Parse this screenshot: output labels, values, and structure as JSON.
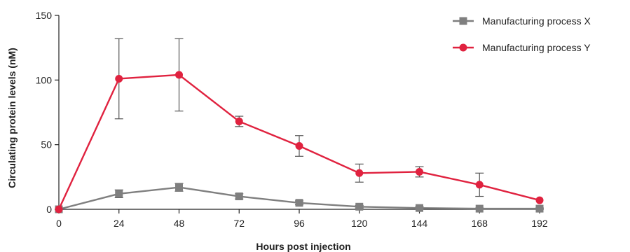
{
  "chart_data": {
    "type": "line",
    "xlabel": "Hours post injection",
    "ylabel": "Circulating protein levels (nM)",
    "x": [
      0,
      24,
      48,
      72,
      96,
      120,
      144,
      168,
      192
    ],
    "xticks": [
      "0",
      "24",
      "48",
      "72",
      "96",
      "120",
      "144",
      "168",
      "192"
    ],
    "xlim": [
      0,
      192
    ],
    "yticks": [
      "0",
      "50",
      "100",
      "150"
    ],
    "ylim": [
      0,
      150
    ],
    "grid": false,
    "legend_position": "top-right",
    "series": [
      {
        "name": "Manufacturing process X",
        "color": "#7f7f7f",
        "marker": "square",
        "values": [
          0,
          12,
          17,
          10,
          5,
          2,
          1,
          0.5,
          0.5
        ],
        "error": [
          0,
          3,
          3,
          2,
          1.5,
          1,
          1,
          0.5,
          0.5
        ]
      },
      {
        "name": "Manufacturing process Y",
        "color": "#e0223f",
        "marker": "circle",
        "values": [
          0,
          101,
          104,
          68,
          49,
          28,
          29,
          19,
          7
        ],
        "error": [
          0,
          31,
          28,
          4,
          8,
          7,
          4,
          9,
          0
        ]
      }
    ]
  }
}
